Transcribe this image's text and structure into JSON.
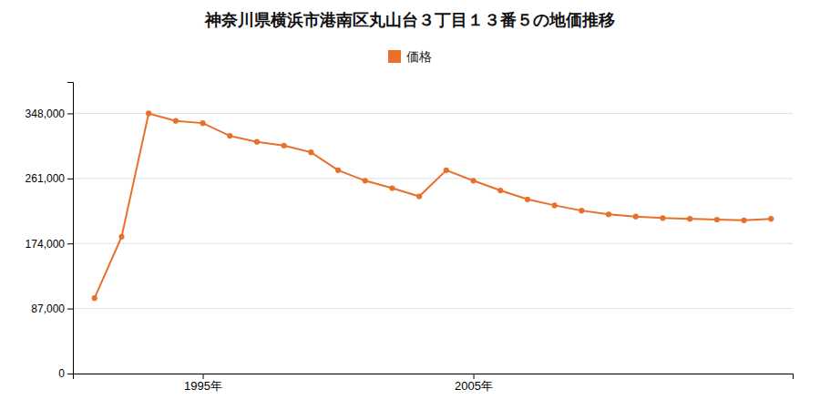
{
  "chart_data": {
    "type": "line",
    "title": "神奈川県横浜市港南区丸山台３丁目１３番５の地価推移",
    "x": [
      1991,
      1992,
      1993,
      1994,
      1995,
      1996,
      1997,
      1998,
      1999,
      2000,
      2001,
      2002,
      2003,
      2004,
      2005,
      2006,
      2007,
      2008,
      2009,
      2010,
      2011,
      2012,
      2013,
      2014,
      2015,
      2016
    ],
    "series": [
      {
        "name": "価格",
        "color": "#e8702a",
        "marker": "circle",
        "values": [
          101000,
          183000,
          348000,
          338000,
          335000,
          318000,
          310000,
          305000,
          296000,
          272000,
          258000,
          248000,
          237000,
          272000,
          258000,
          245000,
          233000,
          225000,
          218000,
          213000,
          210000,
          208000,
          207000,
          206000,
          205000,
          207000
        ]
      }
    ],
    "xlim": [
      1990.2,
      2016.8
    ],
    "xticks": [
      {
        "value": 1995,
        "label": "1995年"
      },
      {
        "value": 2005,
        "label": "2005年"
      }
    ],
    "ylim": [
      0,
      390000
    ],
    "yticks": [
      0,
      {
        "value": 87000,
        "label": "87,000"
      },
      {
        "value": 174000,
        "label": "174,000"
      },
      {
        "value": 261000,
        "label": "261,000"
      },
      {
        "value": 348000,
        "label": "348,000"
      }
    ],
    "grid": true,
    "legend": "top"
  }
}
